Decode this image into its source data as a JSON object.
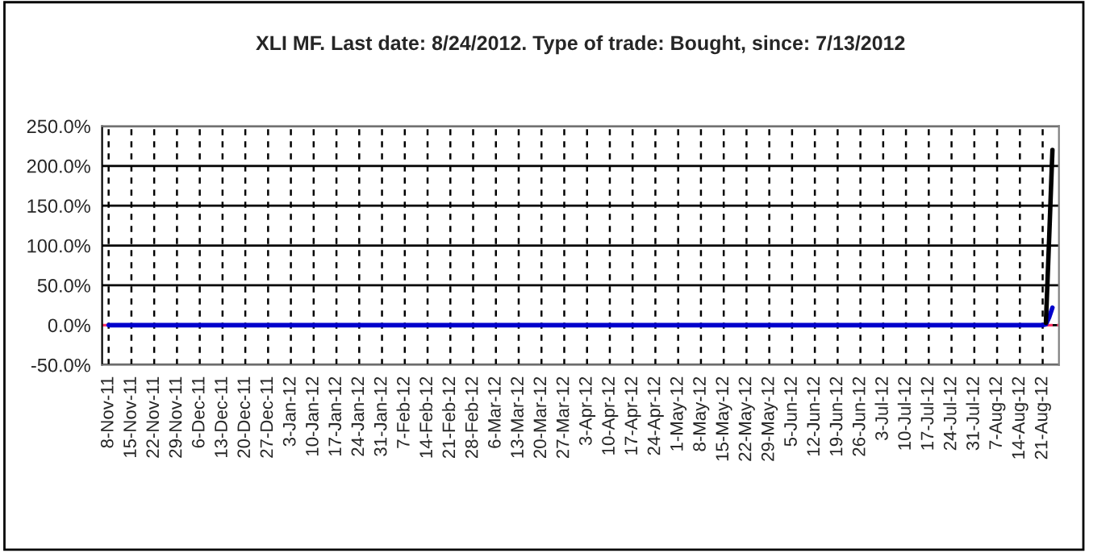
{
  "chart_data": {
    "type": "line",
    "title": "XLI MF. Last date: 8/24/2012. Type of trade: Bought, since: 7/13/2012",
    "x": [
      "2011-11-08",
      "2011-11-15",
      "2011-11-22",
      "2011-11-29",
      "2011-12-06",
      "2011-12-13",
      "2011-12-20",
      "2011-12-27",
      "2012-01-03",
      "2012-01-10",
      "2012-01-17",
      "2012-01-24",
      "2012-01-31",
      "2012-02-07",
      "2012-02-14",
      "2012-02-21",
      "2012-02-28",
      "2012-03-06",
      "2012-03-13",
      "2012-03-20",
      "2012-03-27",
      "2012-04-03",
      "2012-04-10",
      "2012-04-17",
      "2012-04-24",
      "2012-05-01",
      "2012-05-08",
      "2012-05-15",
      "2012-05-22",
      "2012-05-29",
      "2012-06-05",
      "2012-06-12",
      "2012-06-19",
      "2012-06-26",
      "2012-07-03",
      "2012-07-10",
      "2012-07-17",
      "2012-07-24",
      "2012-07-31",
      "2012-08-07",
      "2012-08-14",
      "2012-08-21",
      "2012-08-22",
      "2012-08-23",
      "2012-08-24"
    ],
    "series": [
      {
        "color": "#0000cc",
        "values": [
          0,
          0,
          0,
          0,
          0,
          0,
          0,
          0,
          0,
          0,
          0,
          0,
          0,
          0,
          0,
          0,
          0,
          0,
          0,
          0,
          0,
          0,
          0,
          0,
          0,
          0,
          0,
          0,
          0,
          0,
          0,
          0,
          0,
          0,
          0,
          0,
          0,
          0,
          0,
          0,
          0,
          0,
          1,
          10,
          22
        ]
      },
      {
        "color": "#000000",
        "values": [
          null,
          null,
          null,
          null,
          null,
          null,
          null,
          null,
          null,
          null,
          null,
          null,
          null,
          null,
          null,
          null,
          null,
          null,
          null,
          null,
          null,
          null,
          null,
          null,
          null,
          null,
          null,
          null,
          null,
          null,
          null,
          null,
          null,
          null,
          null,
          null,
          null,
          null,
          null,
          null,
          null,
          null,
          3,
          110,
          220
        ]
      }
    ],
    "ref_lines": [
      {
        "axis": "y",
        "value": 0,
        "color": "#ff3366",
        "line_style": "dashed"
      }
    ],
    "xlim": [
      "2011-11-06",
      "2012-08-26"
    ],
    "xticks": [
      {
        "value": "2011-11-08",
        "label": "8-Nov-11"
      },
      {
        "value": "2011-11-15",
        "label": "15-Nov-11"
      },
      {
        "value": "2011-11-22",
        "label": "22-Nov-11"
      },
      {
        "value": "2011-11-29",
        "label": "29-Nov-11"
      },
      {
        "value": "2011-12-06",
        "label": "6-Dec-11"
      },
      {
        "value": "2011-12-13",
        "label": "13-Dec-11"
      },
      {
        "value": "2011-12-20",
        "label": "20-Dec-11"
      },
      {
        "value": "2011-12-27",
        "label": "27-Dec-11"
      },
      {
        "value": "2012-01-03",
        "label": "3-Jan-12"
      },
      {
        "value": "2012-01-10",
        "label": "10-Jan-12"
      },
      {
        "value": "2012-01-17",
        "label": "17-Jan-12"
      },
      {
        "value": "2012-01-24",
        "label": "24-Jan-12"
      },
      {
        "value": "2012-01-31",
        "label": "31-Jan-12"
      },
      {
        "value": "2012-02-07",
        "label": "7-Feb-12"
      },
      {
        "value": "2012-02-14",
        "label": "14-Feb-12"
      },
      {
        "value": "2012-02-21",
        "label": "21-Feb-12"
      },
      {
        "value": "2012-02-28",
        "label": "28-Feb-12"
      },
      {
        "value": "2012-03-06",
        "label": "6-Mar-12"
      },
      {
        "value": "2012-03-13",
        "label": "13-Mar-12"
      },
      {
        "value": "2012-03-20",
        "label": "20-Mar-12"
      },
      {
        "value": "2012-03-27",
        "label": "27-Mar-12"
      },
      {
        "value": "2012-04-03",
        "label": "3-Apr-12"
      },
      {
        "value": "2012-04-10",
        "label": "10-Apr-12"
      },
      {
        "value": "2012-04-17",
        "label": "17-Apr-12"
      },
      {
        "value": "2012-04-24",
        "label": "24-Apr-12"
      },
      {
        "value": "2012-05-01",
        "label": "1-May-12"
      },
      {
        "value": "2012-05-08",
        "label": "8-May-12"
      },
      {
        "value": "2012-05-15",
        "label": "15-May-12"
      },
      {
        "value": "2012-05-22",
        "label": "22-May-12"
      },
      {
        "value": "2012-05-29",
        "label": "29-May-12"
      },
      {
        "value": "2012-06-05",
        "label": "5-Jun-12"
      },
      {
        "value": "2012-06-12",
        "label": "12-Jun-12"
      },
      {
        "value": "2012-06-19",
        "label": "19-Jun-12"
      },
      {
        "value": "2012-06-26",
        "label": "26-Jun-12"
      },
      {
        "value": "2012-07-03",
        "label": "3-Jul-12"
      },
      {
        "value": "2012-07-10",
        "label": "10-Jul-12"
      },
      {
        "value": "2012-07-17",
        "label": "17-Jul-12"
      },
      {
        "value": "2012-07-24",
        "label": "24-Jul-12"
      },
      {
        "value": "2012-07-31",
        "label": "31-Jul-12"
      },
      {
        "value": "2012-08-07",
        "label": "7-Aug-12"
      },
      {
        "value": "2012-08-14",
        "label": "14-Aug-12"
      },
      {
        "value": "2012-08-21",
        "label": "21-Aug-12"
      }
    ],
    "ylim": [
      -50,
      250
    ],
    "yticks": [
      {
        "value": -50,
        "label": "-50.0%"
      },
      {
        "value": 0,
        "label": "0.0%"
      },
      {
        "value": 50,
        "label": "50.0%"
      },
      {
        "value": 100,
        "label": "100.0%"
      },
      {
        "value": 150,
        "label": "150.0%"
      },
      {
        "value": 200,
        "label": "200.0%"
      },
      {
        "value": 250,
        "label": "250.0%"
      }
    ],
    "grid": true,
    "legend": false
  }
}
